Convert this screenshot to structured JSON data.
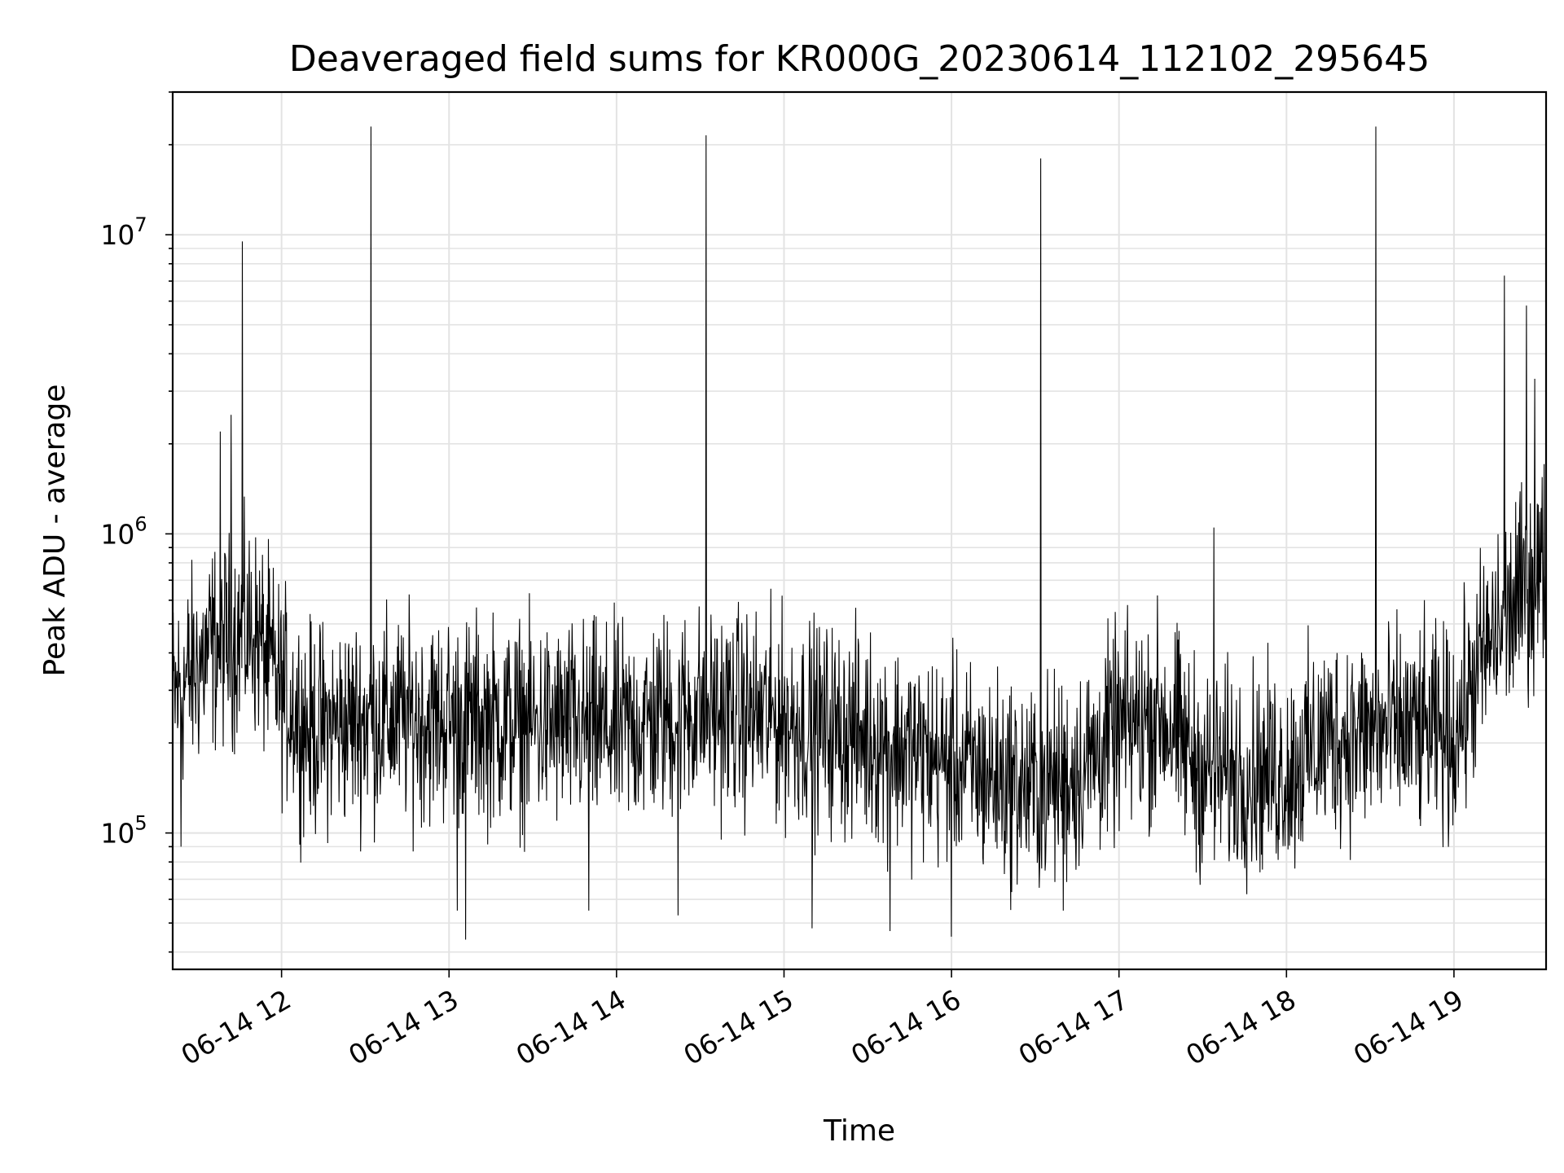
{
  "chart_data": {
    "type": "line",
    "title": "Deaveraged field sums for KR000G_20230614_112102_295645",
    "xlabel": "Time",
    "ylabel": "Peak ADU - average",
    "yscale": "log",
    "ylim": [
      35000,
      30000000
    ],
    "xlim": [
      "2023-06-14T11:21",
      "2023-06-14T19:33"
    ],
    "grid": true,
    "line_color": "#000000",
    "x_ticks": [
      {
        "t": "2023-06-14T12:00",
        "label": "06-14 12"
      },
      {
        "t": "2023-06-14T13:00",
        "label": "06-14 13"
      },
      {
        "t": "2023-06-14T14:00",
        "label": "06-14 14"
      },
      {
        "t": "2023-06-14T15:00",
        "label": "06-14 15"
      },
      {
        "t": "2023-06-14T16:00",
        "label": "06-14 16"
      },
      {
        "t": "2023-06-14T17:00",
        "label": "06-14 17"
      },
      {
        "t": "2023-06-14T18:00",
        "label": "06-14 18"
      },
      {
        "t": "2023-06-14T19:00",
        "label": "06-14 19"
      }
    ],
    "y_ticks": [
      {
        "value": 100000,
        "base": "10",
        "exp": "5"
      },
      {
        "value": 1000000,
        "base": "10",
        "exp": "6"
      },
      {
        "value": 10000000,
        "base": "10",
        "exp": "7"
      }
    ],
    "baseline": [
      {
        "t": "2023-06-14T11:21",
        "y": 280000
      },
      {
        "t": "2023-06-14T11:35",
        "y": 420000
      },
      {
        "t": "2023-06-14T11:50",
        "y": 480000
      },
      {
        "t": "2023-06-14T12:00",
        "y": 300000
      },
      {
        "t": "2023-06-14T12:10",
        "y": 220000
      },
      {
        "t": "2023-06-14T12:30",
        "y": 240000
      },
      {
        "t": "2023-06-14T13:00",
        "y": 240000
      },
      {
        "t": "2023-06-14T14:00",
        "y": 220000
      },
      {
        "t": "2023-06-14T14:30",
        "y": 260000
      },
      {
        "t": "2023-06-14T15:00",
        "y": 240000
      },
      {
        "t": "2023-06-14T15:30",
        "y": 210000
      },
      {
        "t": "2023-06-14T16:00",
        "y": 170000
      },
      {
        "t": "2023-06-14T16:30",
        "y": 140000
      },
      {
        "t": "2023-06-14T16:45",
        "y": 160000
      },
      {
        "t": "2023-06-14T17:00",
        "y": 220000
      },
      {
        "t": "2023-06-14T17:15",
        "y": 250000
      },
      {
        "t": "2023-06-14T17:30",
        "y": 160000
      },
      {
        "t": "2023-06-14T18:00",
        "y": 160000
      },
      {
        "t": "2023-06-14T18:15",
        "y": 210000
      },
      {
        "t": "2023-06-14T18:45",
        "y": 220000
      },
      {
        "t": "2023-06-14T19:00",
        "y": 210000
      },
      {
        "t": "2023-06-14T19:10",
        "y": 380000
      },
      {
        "t": "2023-06-14T19:20",
        "y": 550000
      },
      {
        "t": "2023-06-14T19:33",
        "y": 800000
      }
    ],
    "spikes": [
      {
        "t": "2023-06-14T11:38",
        "y": 2200000
      },
      {
        "t": "2023-06-14T11:42",
        "y": 2500000
      },
      {
        "t": "2023-06-14T11:46",
        "y": 9500000
      },
      {
        "t": "2023-06-14T12:32",
        "y": 23000000
      },
      {
        "t": "2023-06-14T14:32",
        "y": 21500000
      },
      {
        "t": "2023-06-14T16:32",
        "y": 18000000
      },
      {
        "t": "2023-06-14T17:34",
        "y": 1050000
      },
      {
        "t": "2023-06-14T18:32",
        "y": 23000000
      },
      {
        "t": "2023-06-14T19:18",
        "y": 7300000
      },
      {
        "t": "2023-06-14T19:26",
        "y": 5800000
      },
      {
        "t": "2023-06-14T19:29",
        "y": 3300000
      }
    ],
    "dips": [
      {
        "t": "2023-06-14T11:24",
        "y": 90000
      },
      {
        "t": "2023-06-14T13:03",
        "y": 55000
      },
      {
        "t": "2023-06-14T13:06",
        "y": 44000
      },
      {
        "t": "2023-06-14T13:50",
        "y": 55000
      },
      {
        "t": "2023-06-14T14:22",
        "y": 53000
      },
      {
        "t": "2023-06-14T15:10",
        "y": 48000
      },
      {
        "t": "2023-06-14T15:38",
        "y": 47000
      },
      {
        "t": "2023-06-14T16:00",
        "y": 45000
      },
      {
        "t": "2023-06-14T16:40",
        "y": 55000
      }
    ]
  }
}
